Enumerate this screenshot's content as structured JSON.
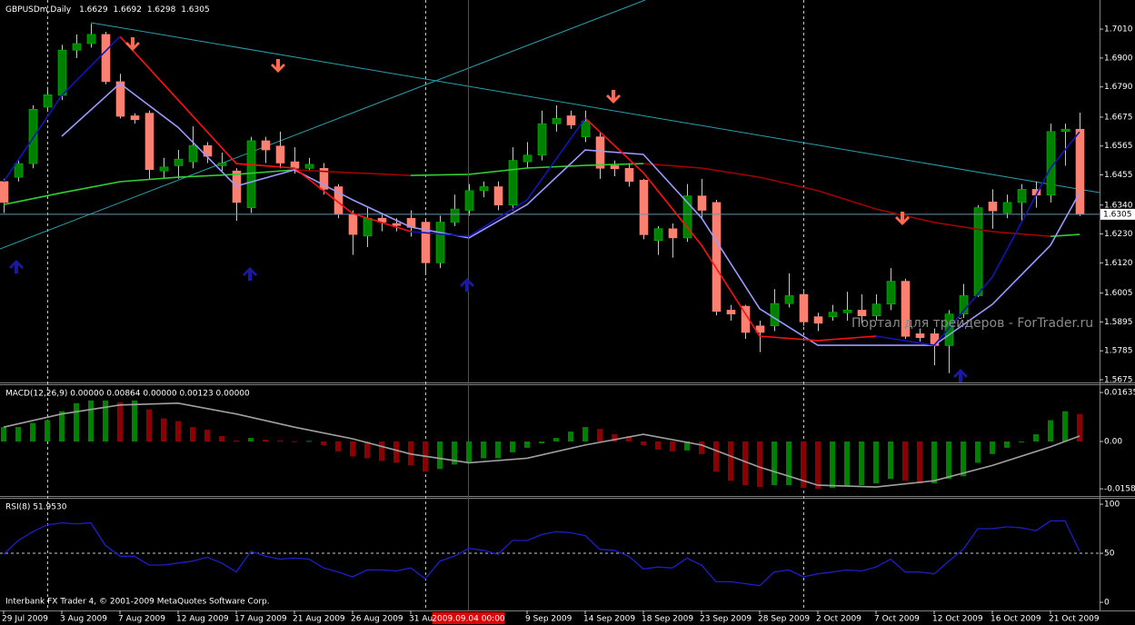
{
  "chart_data": [
    {
      "type": "candlestick",
      "title": "GBPUSDm,Daily",
      "categories": [
        "29 Jul 2009",
        null,
        null,
        null,
        "3 Aug 2009",
        null,
        null,
        null,
        "7 Aug 2009",
        null,
        null,
        null,
        "12 Aug 2009",
        null,
        null,
        null,
        "17 Aug 2009",
        null,
        null,
        null,
        "21 Aug 2009",
        null,
        null,
        null,
        "26 Aug 2009",
        null,
        null,
        null,
        "31 Aug 2009",
        null,
        null,
        null,
        null,
        null,
        null,
        null,
        "9 Sep 2009",
        null,
        null,
        null,
        "14 Sep 2009",
        null,
        null,
        null,
        "18 Sep 2009",
        null,
        null,
        null,
        "23 Sep 2009",
        null,
        null,
        null,
        "28 Sep 2009",
        null,
        null,
        null,
        "2 Oct 2009",
        null,
        null,
        null,
        "7 Oct 2009",
        null,
        null,
        null,
        "12 Oct 2009",
        null,
        null,
        null,
        "16 Oct 2009",
        null,
        null,
        null,
        "21 Oct 2009",
        null,
        null
      ],
      "open": [
        1.643,
        1.6446,
        1.6498,
        1.6713,
        1.6758,
        1.693,
        1.6955,
        1.699,
        1.681,
        1.668,
        1.669,
        1.647,
        1.649,
        1.6505,
        1.6567,
        1.649,
        1.647,
        1.633,
        1.6585,
        1.6565,
        1.6505,
        1.648,
        1.648,
        1.641,
        1.6305,
        1.6222,
        1.629,
        1.627,
        1.629,
        1.6275,
        1.612,
        1.6275,
        1.632,
        1.6395,
        1.641,
        1.634,
        1.6505,
        1.653,
        1.665,
        1.668,
        1.66,
        1.66,
        1.649,
        1.648,
        1.6435,
        1.6205,
        1.625,
        1.6215,
        1.6375,
        1.635,
        1.594,
        1.5955,
        1.588,
        1.588,
        1.5965,
        1.6,
        1.5915,
        1.5915,
        1.593,
        1.594,
        1.5918,
        1.5963,
        1.605,
        1.585,
        1.585,
        1.5805,
        1.5925,
        1.5995,
        1.6352,
        1.631,
        1.635,
        1.64,
        1.6378,
        1.662,
        1.6629
      ],
      "high": [
        1.644,
        1.651,
        1.672,
        1.679,
        1.695,
        1.699,
        1.703,
        1.7,
        1.684,
        1.669,
        1.67,
        1.652,
        1.655,
        1.664,
        1.658,
        1.654,
        1.648,
        1.66,
        1.66,
        1.662,
        1.656,
        1.652,
        1.65,
        1.642,
        1.632,
        1.633,
        1.631,
        1.629,
        1.632,
        1.629,
        1.63,
        1.638,
        1.642,
        1.643,
        1.643,
        1.656,
        1.658,
        1.67,
        1.672,
        1.67,
        1.67,
        1.662,
        1.651,
        1.65,
        1.644,
        1.626,
        1.627,
        1.642,
        1.644,
        1.636,
        1.596,
        1.596,
        1.59,
        1.602,
        1.608,
        1.601,
        1.593,
        1.596,
        1.601,
        1.6,
        1.6,
        1.61,
        1.606,
        1.587,
        1.587,
        1.594,
        1.604,
        1.634,
        1.64,
        1.638,
        1.642,
        1.643,
        1.665,
        1.665,
        1.6692
      ],
      "low": [
        1.631,
        1.643,
        1.648,
        1.67,
        1.674,
        1.69,
        1.694,
        1.68,
        1.667,
        1.665,
        1.644,
        1.644,
        1.644,
        1.648,
        1.65,
        1.647,
        1.628,
        1.631,
        1.65,
        1.648,
        1.646,
        1.647,
        1.638,
        1.629,
        1.615,
        1.618,
        1.624,
        1.624,
        1.622,
        1.608,
        1.61,
        1.626,
        1.63,
        1.637,
        1.632,
        1.632,
        1.648,
        1.651,
        1.662,
        1.663,
        1.658,
        1.644,
        1.645,
        1.641,
        1.621,
        1.615,
        1.614,
        1.62,
        1.629,
        1.592,
        1.59,
        1.583,
        1.578,
        1.586,
        1.595,
        1.588,
        1.586,
        1.59,
        1.59,
        1.589,
        1.59,
        1.594,
        1.583,
        1.582,
        1.573,
        1.57,
        1.591,
        1.599,
        1.625,
        1.629,
        1.628,
        1.633,
        1.635,
        1.649,
        1.6298
      ],
      "close": [
        1.635,
        1.6498,
        1.6705,
        1.676,
        1.693,
        1.6955,
        1.699,
        1.681,
        1.6678,
        1.6665,
        1.6475,
        1.6485,
        1.6515,
        1.6567,
        1.6526,
        1.65,
        1.635,
        1.6585,
        1.655,
        1.65,
        1.648,
        1.6495,
        1.64,
        1.6305,
        1.6228,
        1.629,
        1.6275,
        1.6262,
        1.6255,
        1.612,
        1.6275,
        1.6325,
        1.6395,
        1.641,
        1.634,
        1.651,
        1.653,
        1.665,
        1.667,
        1.6645,
        1.666,
        1.648,
        1.6478,
        1.643,
        1.6227,
        1.625,
        1.6215,
        1.6375,
        1.632,
        1.5935,
        1.5925,
        1.5855,
        1.5855,
        1.5965,
        1.5995,
        1.5895,
        1.589,
        1.5932,
        1.594,
        1.5918,
        1.5963,
        1.605,
        1.584,
        1.5835,
        1.5805,
        1.5925,
        1.5995,
        1.633,
        1.6318,
        1.635,
        1.64,
        1.6378,
        1.662,
        1.6629,
        1.6305
      ],
      "up_color": "#008000",
      "down_color": "#fa8072",
      "ylim": [
        1.5668,
        1.7121
      ],
      "yticks": [
        {
          "value": 1.701,
          "label": "1.7010"
        },
        {
          "value": 1.69,
          "label": "1.6900"
        },
        {
          "value": 1.679,
          "label": "1.6790"
        },
        1.6675,
        1.6565,
        1.6455,
        {
          "value": 1.634,
          "label": "1.6340"
        },
        {
          "value": 1.623,
          "label": "1.6230"
        },
        {
          "value": 1.612,
          "label": "1.6120"
        },
        1.6005,
        1.5895,
        1.5785,
        1.5675
      ],
      "lines": [
        {
          "color": "#32cd32",
          "x": [
            0,
            4,
            8,
            12,
            16,
            20,
            24,
            28,
            32,
            36,
            40,
            44,
            48,
            52,
            56,
            60,
            64,
            68,
            72,
            74
          ],
          "values": [
            1.6342,
            1.6387,
            1.6429,
            1.6446,
            1.6457,
            1.6474,
            null,
            1.6453,
            1.6457,
            1.6481,
            1.6491,
            1.6498,
            null,
            null,
            null,
            null,
            null,
            null,
            1.6221,
            1.6228
          ]
        },
        {
          "color": "#a00000",
          "x": [
            0,
            4,
            8,
            12,
            16,
            20,
            24,
            28,
            32,
            36,
            40,
            44,
            48,
            52,
            56,
            60,
            64,
            68,
            72,
            74
          ],
          "values": [
            null,
            null,
            null,
            null,
            null,
            1.6474,
            1.6463,
            1.6453,
            null,
            null,
            null,
            1.6498,
            1.6481,
            1.6446,
            1.6395,
            1.6325,
            1.6274,
            1.6239,
            1.6221,
            null
          ]
        },
        {
          "color": "#9a9aff",
          "x": [
            0,
            4,
            8,
            12,
            16,
            20,
            24,
            28,
            32,
            36,
            40,
            44,
            48,
            52,
            56,
            60,
            64,
            68,
            72,
            74
          ],
          "values": [
            null,
            1.6602,
            1.6803,
            1.6636,
            1.6412,
            1.6474,
            1.636,
            1.6256,
            1.6215,
            1.6342,
            1.655,
            1.6533,
            1.6291,
            1.5945,
            1.5806,
            1.5806,
            1.5806,
            1.5962,
            1.6187,
            1.6387
          ]
        },
        {
          "color": "#ff1010",
          "x": [
            0,
            4,
            8,
            12,
            16,
            20,
            24,
            28,
            32,
            36,
            40,
            44,
            48,
            52,
            56,
            60,
            64,
            68,
            72,
            74
          ],
          "values": [
            null,
            null,
            1.6982,
            1.674,
            1.6498,
            1.6481,
            1.6308,
            1.6239,
            null,
            null,
            1.6671,
            1.6463,
            1.6187,
            1.5841,
            1.5824,
            1.5841,
            null,
            null,
            null,
            null
          ]
        },
        {
          "color": "#1414b4",
          "x": [
            0,
            4,
            8,
            12,
            16,
            20,
            24,
            28,
            32,
            36,
            40,
            44,
            48,
            52,
            56,
            60,
            64,
            68,
            72,
            74
          ],
          "values": [
            1.6429,
            1.6758,
            1.6982,
            null,
            null,
            null,
            null,
            1.6239,
            1.6221,
            1.636,
            1.6671,
            null,
            null,
            null,
            null,
            1.5841,
            1.5806,
            1.6066,
            1.6481,
            1.6619
          ]
        }
      ],
      "crosshair_x": 32,
      "crosshair_label": "2009.09.04 00:00",
      "watermark": "Портал для трейдеров - ForTrader.ru"
    },
    {
      "type": "bar",
      "title": "MACD(12,26,9) 0.00000 0.00864 0.00000 0.00123 0.00000",
      "values": [
        0.0048,
        0.0048,
        0.0062,
        0.0071,
        0.0101,
        0.0128,
        0.0137,
        0.0137,
        0.0131,
        0.0137,
        0.0107,
        0.0077,
        0.0068,
        0.0048,
        0.0039,
        0.0018,
        0.0003,
        0.0012,
        0.0006,
        0.0003,
        0.0001,
        0.0002,
        -0.0012,
        -0.0033,
        -0.005,
        -0.0056,
        -0.0065,
        -0.0071,
        -0.008,
        -0.0101,
        -0.0092,
        -0.0077,
        -0.0068,
        -0.0056,
        -0.0056,
        -0.0036,
        -0.0021,
        -0.0006,
        0.0012,
        0.0033,
        0.0048,
        0.0042,
        0.0024,
        0.0018,
        -0.0012,
        -0.0027,
        -0.0033,
        -0.003,
        -0.0042,
        -0.0101,
        -0.0131,
        -0.0146,
        -0.0152,
        -0.0146,
        -0.0146,
        -0.0155,
        -0.0158,
        -0.0155,
        -0.0149,
        -0.0146,
        -0.014,
        -0.0125,
        -0.0131,
        -0.014,
        -0.014,
        -0.0125,
        -0.0116,
        -0.0071,
        -0.0042,
        -0.0021,
        -0.0003,
        0.0024,
        0.0071,
        0.0101,
        0.0092
      ],
      "up_color": "#008000",
      "down_color": "#8b0000",
      "lines": [
        {
          "color": "#a0a0a0",
          "x": [
            0,
            4,
            8,
            12,
            16,
            20,
            24,
            28,
            32,
            36,
            40,
            44,
            48,
            52,
            56,
            60,
            64,
            68,
            72,
            74
          ],
          "values": [
            0.0048,
            0.0092,
            0.0122,
            0.0128,
            0.0092,
            0.0048,
            0.0009,
            -0.0042,
            -0.0071,
            -0.0056,
            -0.0012,
            0.0024,
            -0.0012,
            -0.0086,
            -0.0146,
            -0.0152,
            -0.0131,
            -0.008,
            -0.0018,
            0.0018
          ]
        }
      ],
      "ylim": [
        -0.0179,
        0.0188
      ],
      "yticks": [
        0.01635,
        {
          "value": 0,
          "label": "0.00"
        },
        -0.0158
      ]
    },
    {
      "type": "line",
      "title": "RSI(8) 51.9530",
      "color": "#1e1ec8",
      "values": [
        49,
        63,
        72,
        79,
        81,
        80,
        81,
        58,
        47,
        47,
        38,
        38,
        40,
        42,
        46,
        40,
        31,
        52,
        47,
        44,
        45,
        44,
        35,
        31,
        26,
        33,
        33,
        32,
        35,
        24,
        42,
        47,
        55,
        53,
        49,
        63,
        63,
        69,
        72,
        71,
        68,
        54,
        53,
        47,
        34,
        36,
        35,
        45,
        38,
        21,
        21,
        19,
        17,
        31,
        33,
        26,
        29,
        31,
        33,
        32,
        36,
        44,
        31,
        31,
        29,
        42,
        54,
        75,
        75,
        77,
        76,
        73,
        83,
        83,
        51.953
      ],
      "ylim": [
        -8.3,
        105.6
      ],
      "yticks": [
        100,
        50,
        0
      ],
      "levels": [
        50
      ],
      "footer": "Interbank FX Trader 4, © 2001-2009 MetaQuotes Software Corp."
    }
  ]
}
